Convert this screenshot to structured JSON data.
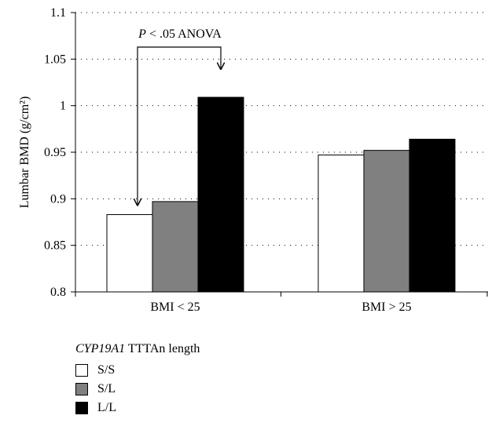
{
  "chart_data": {
    "type": "bar",
    "ylabel": "Lumbar BMD (g/cm²)",
    "ylim": [
      0.8,
      1.1
    ],
    "yticks": [
      "0.8",
      "0.85",
      "0.9",
      "0.95",
      "1",
      "1.05",
      "1.1"
    ],
    "grid": "horizontal-dotted",
    "categories": [
      "BMI < 25",
      "BMI > 25"
    ],
    "series": [
      {
        "name": "S/S",
        "color": "#ffffff",
        "values": [
          0.883,
          0.947
        ]
      },
      {
        "name": "S/L",
        "color": "#808080",
        "values": [
          0.897,
          0.952
        ]
      },
      {
        "name": "L/L",
        "color": "#000000",
        "values": [
          1.009,
          0.964
        ]
      }
    ],
    "annotation": {
      "italic": "P",
      "text": " < .05 ANOVA",
      "from_series": 0,
      "to_series": 2,
      "category": 0
    }
  },
  "legend": {
    "title_gene": "CYP19A1",
    "title_rest": " TTTAn length"
  }
}
